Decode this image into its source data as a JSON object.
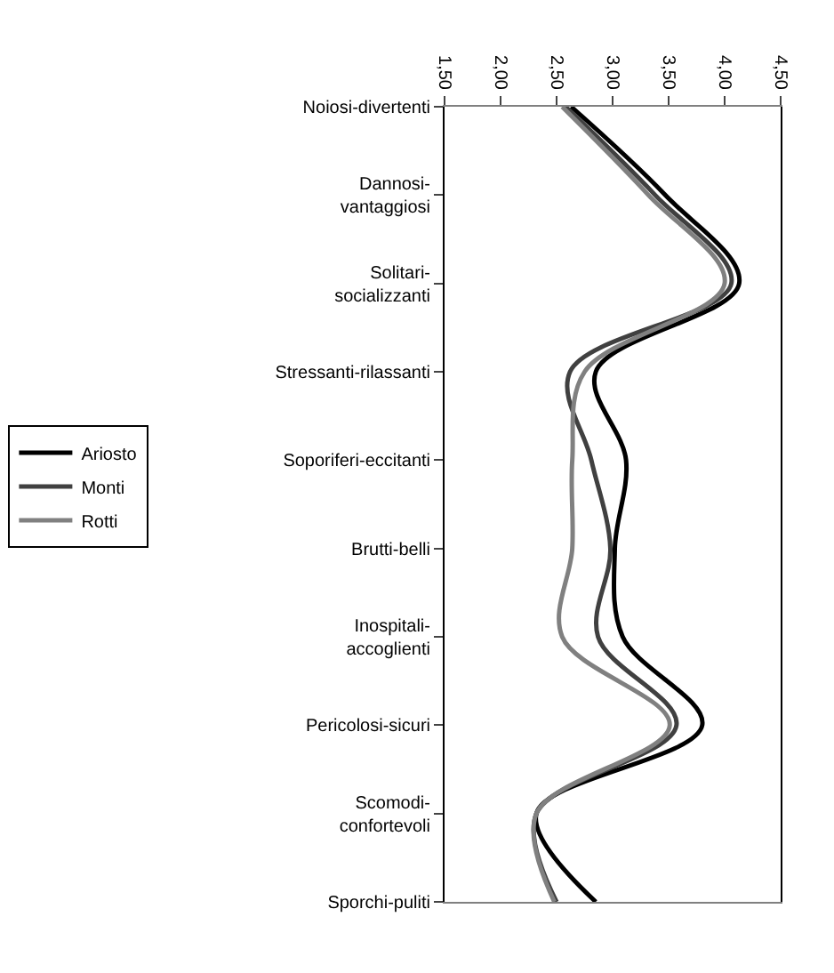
{
  "chart_data": {
    "type": "line",
    "orientation": "horizontal",
    "categories": [
      "Noiosi-divertenti",
      "Dannosi-\nvantaggiosi",
      "Solitari-\nsocializzanti",
      "Stressanti-rilassanti",
      "Soporiferi-eccitanti",
      "Brutti-belli",
      "Inospitali-\naccoglienti",
      "Pericolosi-sicuri",
      "Scomodi-\nconfortevoli",
      "Sporchi-puliti"
    ],
    "series": [
      {
        "name": "Ariosto",
        "color": "#000000",
        "values": [
          2.63,
          3.47,
          4.13,
          2.85,
          3.12,
          3.02,
          3.09,
          3.8,
          2.32,
          2.85
        ]
      },
      {
        "name": "Monti",
        "color": "#404040",
        "values": [
          2.58,
          3.38,
          4.06,
          2.62,
          2.81,
          2.98,
          2.87,
          3.57,
          2.32,
          2.5
        ]
      },
      {
        "name": "Rotti",
        "color": "#808080",
        "values": [
          2.55,
          3.32,
          4.0,
          2.75,
          2.64,
          2.64,
          2.55,
          3.51,
          2.32,
          2.48
        ]
      }
    ],
    "xlim": [
      1.5,
      4.5
    ],
    "xticks": [
      {
        "value": 1.5,
        "label": "1,50"
      },
      {
        "value": 2.0,
        "label": "2,00"
      },
      {
        "value": 2.5,
        "label": "2,50"
      },
      {
        "value": 3.0,
        "label": "3,00"
      },
      {
        "value": 3.5,
        "label": "3,50"
      },
      {
        "value": 4.0,
        "label": "4,00"
      },
      {
        "value": 4.5,
        "label": "4,50"
      }
    ],
    "legend": "left",
    "marker": "none",
    "line_style": "solid"
  }
}
